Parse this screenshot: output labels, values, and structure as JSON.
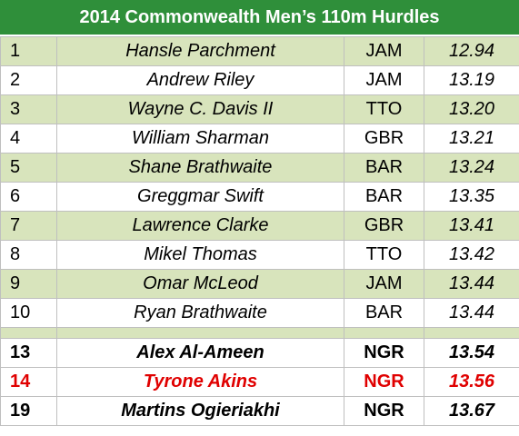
{
  "title": "2014 Commonwealth Men’s 110m Hurdles",
  "rows": [
    [
      "1",
      "Hansle Parchment",
      "JAM",
      "12.94"
    ],
    [
      "2",
      "Andrew Riley",
      "JAM",
      "13.19"
    ],
    [
      "3",
      "Wayne C. Davis II",
      "TTO",
      "13.20"
    ],
    [
      "4",
      "William Sharman",
      "GBR",
      "13.21"
    ],
    [
      "5",
      "Shane Brathwaite",
      "BAR",
      "13.24"
    ],
    [
      "6",
      "Greggmar Swift",
      "BAR",
      "13.35"
    ],
    [
      "7",
      "Lawrence Clarke",
      "GBR",
      "13.41"
    ],
    [
      "8",
      "Mikel Thomas",
      "TTO",
      "13.42"
    ],
    [
      "9",
      "Omar McLeod",
      "JAM",
      "13.44"
    ],
    [
      "10",
      "Ryan Brathwaite",
      "BAR",
      "13.44"
    ]
  ],
  "extra_rows": [
    [
      "13",
      "Alex Al-Ameen",
      "NGR",
      "13.54"
    ],
    [
      "14",
      "Tyrone Akins",
      "NGR",
      "13.56"
    ],
    [
      "19",
      "Martins Ogieriakhi",
      "NGR",
      "13.67"
    ]
  ]
}
